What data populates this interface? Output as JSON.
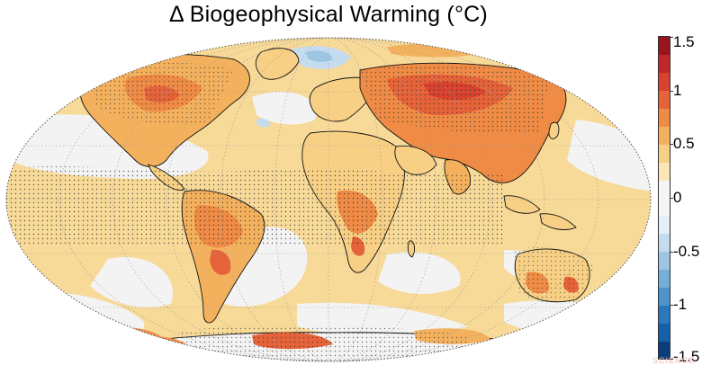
{
  "title": "Δ Biogeophysical Warming (°C)",
  "colorbar": {
    "min": -1.5,
    "max": 1.5,
    "ticks": [
      "1.5",
      "1",
      "0.5",
      "0",
      "-0.5",
      "-1",
      "-1.5"
    ],
    "tick_values": [
      1.5,
      1,
      0.5,
      0,
      -0.5,
      -1,
      -1.5
    ],
    "colors": [
      "#0a3f7e",
      "#1560ab",
      "#2b78bd",
      "#4c94cb",
      "#74afd8",
      "#9dc6e3",
      "#c5dbee",
      "#e6eef6",
      "#f5f5f5",
      "#f5f5f5",
      "#fbe6b8",
      "#f8d085",
      "#f4b15d",
      "#ef8b45",
      "#e6633a",
      "#d8422f",
      "#c22828",
      "#98151e"
    ]
  },
  "map": {
    "projection": "Robinson",
    "ocean_color": "#f7d998",
    "neutral_color": "#f3f3f3"
  },
  "credit": "SCIENCE"
}
